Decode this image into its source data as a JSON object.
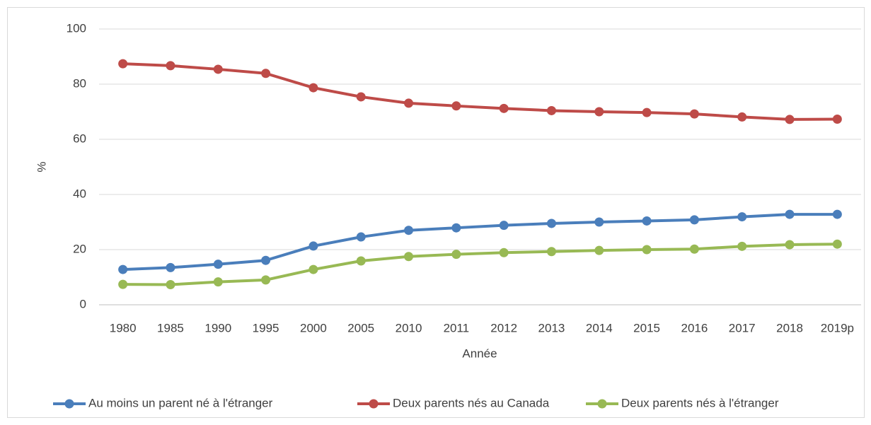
{
  "chart_data": {
    "type": "line",
    "x_label": "Année",
    "y_label": "%",
    "categories": [
      "1980",
      "1985",
      "1990",
      "1995",
      "2000",
      "2005",
      "2010",
      "2011",
      "2012",
      "2013",
      "2014",
      "2015",
      "2016",
      "2017",
      "2018",
      "2019p"
    ],
    "series": [
      {
        "name": "Au moins un parent  né à l'étranger",
        "color": "#4a7ebb",
        "values": [
          12.8,
          13.5,
          14.7,
          16.1,
          21.3,
          24.6,
          27.0,
          27.9,
          28.8,
          29.5,
          30.0,
          30.4,
          30.8,
          31.9,
          32.8,
          32.8
        ]
      },
      {
        "name": "Deux parents nés au Canada",
        "color": "#be4b48",
        "values": [
          87.4,
          86.7,
          85.4,
          83.9,
          78.7,
          75.4,
          73.1,
          72.1,
          71.2,
          70.4,
          70.0,
          69.7,
          69.2,
          68.1,
          67.2,
          67.3
        ]
      },
      {
        "name": "Deux parents nés à l'étranger",
        "color": "#98b954",
        "values": [
          7.4,
          7.3,
          8.3,
          9.0,
          12.8,
          15.9,
          17.5,
          18.3,
          18.9,
          19.3,
          19.7,
          20.0,
          20.2,
          21.2,
          21.8,
          22.0
        ]
      }
    ],
    "ylim": [
      0,
      100
    ],
    "yticks": [
      0,
      20,
      40,
      60,
      80,
      100
    ],
    "grid": true,
    "legend": "bottom"
  }
}
